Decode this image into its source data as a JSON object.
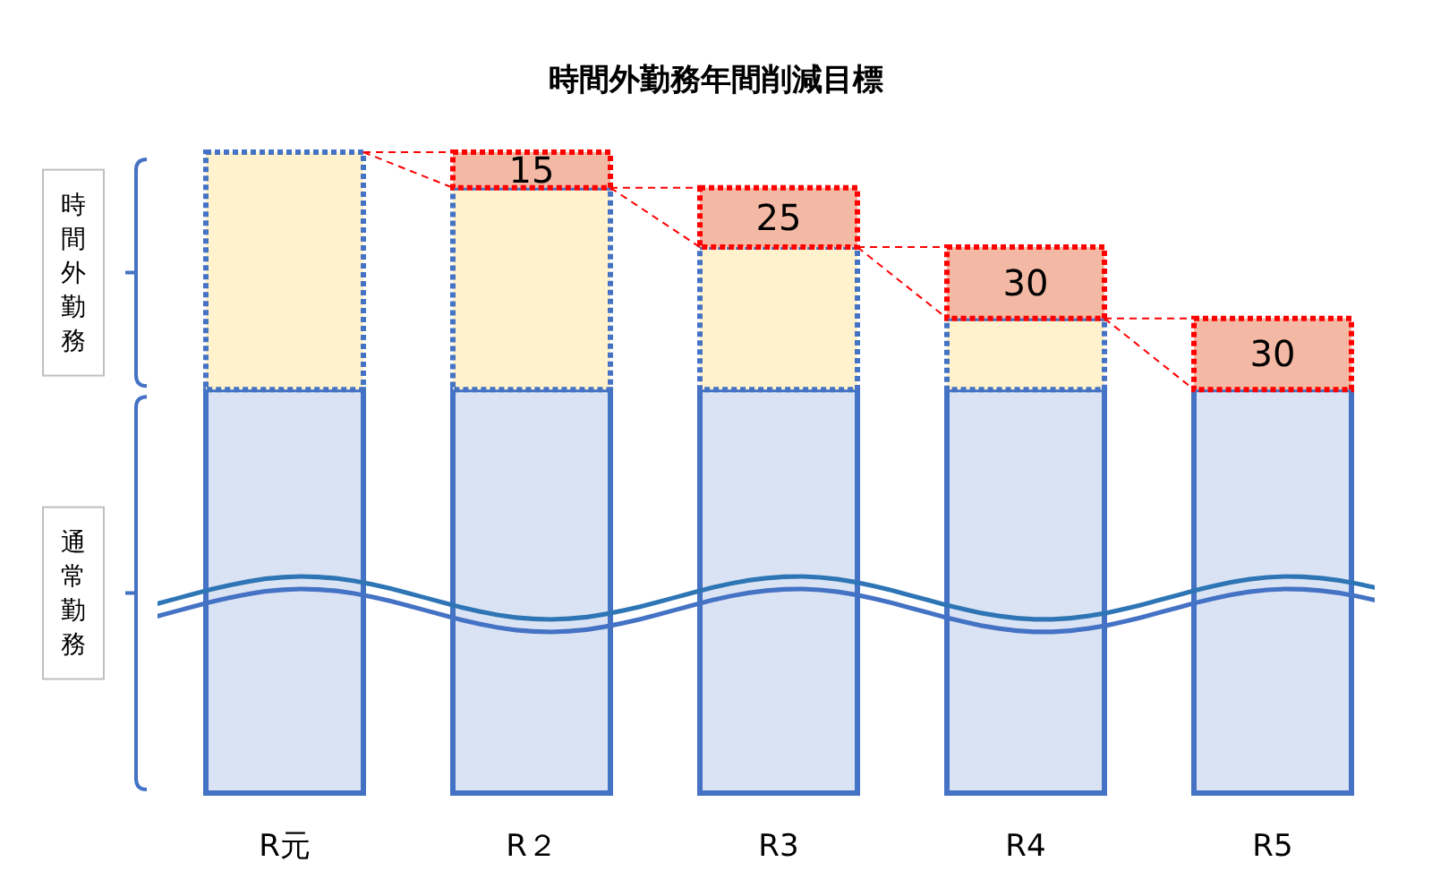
{
  "chart_data": {
    "type": "bar",
    "stacked": true,
    "title": "時間外勤務年間削減目標",
    "categories": [
      "R元",
      "R２",
      "R3",
      "R4",
      "R5"
    ],
    "legend": "left",
    "series": [
      {
        "name": "通常勤務",
        "color": "#dae3f3",
        "values": [
          170,
          170,
          170,
          170,
          170
        ]
      },
      {
        "name": "時間外勤務",
        "color": "#fff2cc",
        "line_style": "dotted",
        "values": [
          100,
          85,
          60,
          30,
          0
        ]
      },
      {
        "color": "#f4b9a4",
        "line_style": "dotted",
        "values": [
          null,
          15,
          25,
          30,
          30
        ],
        "value_labels": [
          null,
          "15",
          "25",
          "30",
          "30"
        ]
      }
    ]
  }
}
